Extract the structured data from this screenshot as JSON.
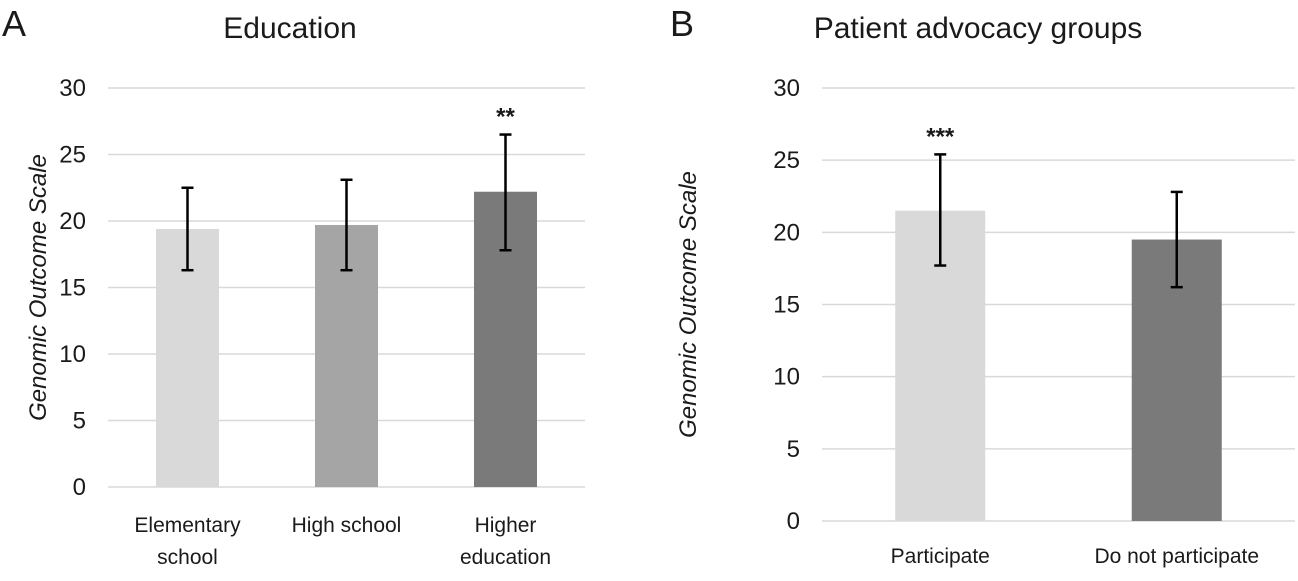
{
  "chart_data": [
    {
      "type": "bar",
      "panel": "A",
      "title": "Education",
      "ylabel": "Genomic Outcome Scale",
      "xlabel": "",
      "ylim": [
        0,
        30
      ],
      "yticks": [
        0,
        5,
        10,
        15,
        20,
        25,
        30
      ],
      "categories": [
        [
          "Elementary",
          "school"
        ],
        [
          "High school"
        ],
        [
          "Higher",
          "education"
        ]
      ],
      "values": [
        19.4,
        19.7,
        22.2
      ],
      "error_low": [
        16.3,
        16.3,
        17.8
      ],
      "error_high": [
        22.5,
        23.1,
        26.5
      ],
      "significance": [
        "",
        "",
        "**"
      ],
      "colors": [
        "#d9d9d9",
        "#a5a5a5",
        "#7a7a7a"
      ]
    },
    {
      "type": "bar",
      "panel": "B",
      "title": "Patient advocacy groups",
      "ylabel": "Genomic Outcome Scale",
      "xlabel": "",
      "ylim": [
        0,
        30
      ],
      "yticks": [
        0,
        5,
        10,
        15,
        20,
        25,
        30
      ],
      "categories": [
        [
          "Participate"
        ],
        [
          "Do not participate"
        ]
      ],
      "values": [
        21.5,
        19.5
      ],
      "error_low": [
        17.7,
        16.2
      ],
      "error_high": [
        25.4,
        22.8
      ],
      "significance": [
        "***",
        ""
      ],
      "colors": [
        "#d9d9d9",
        "#7a7a7a"
      ]
    }
  ]
}
